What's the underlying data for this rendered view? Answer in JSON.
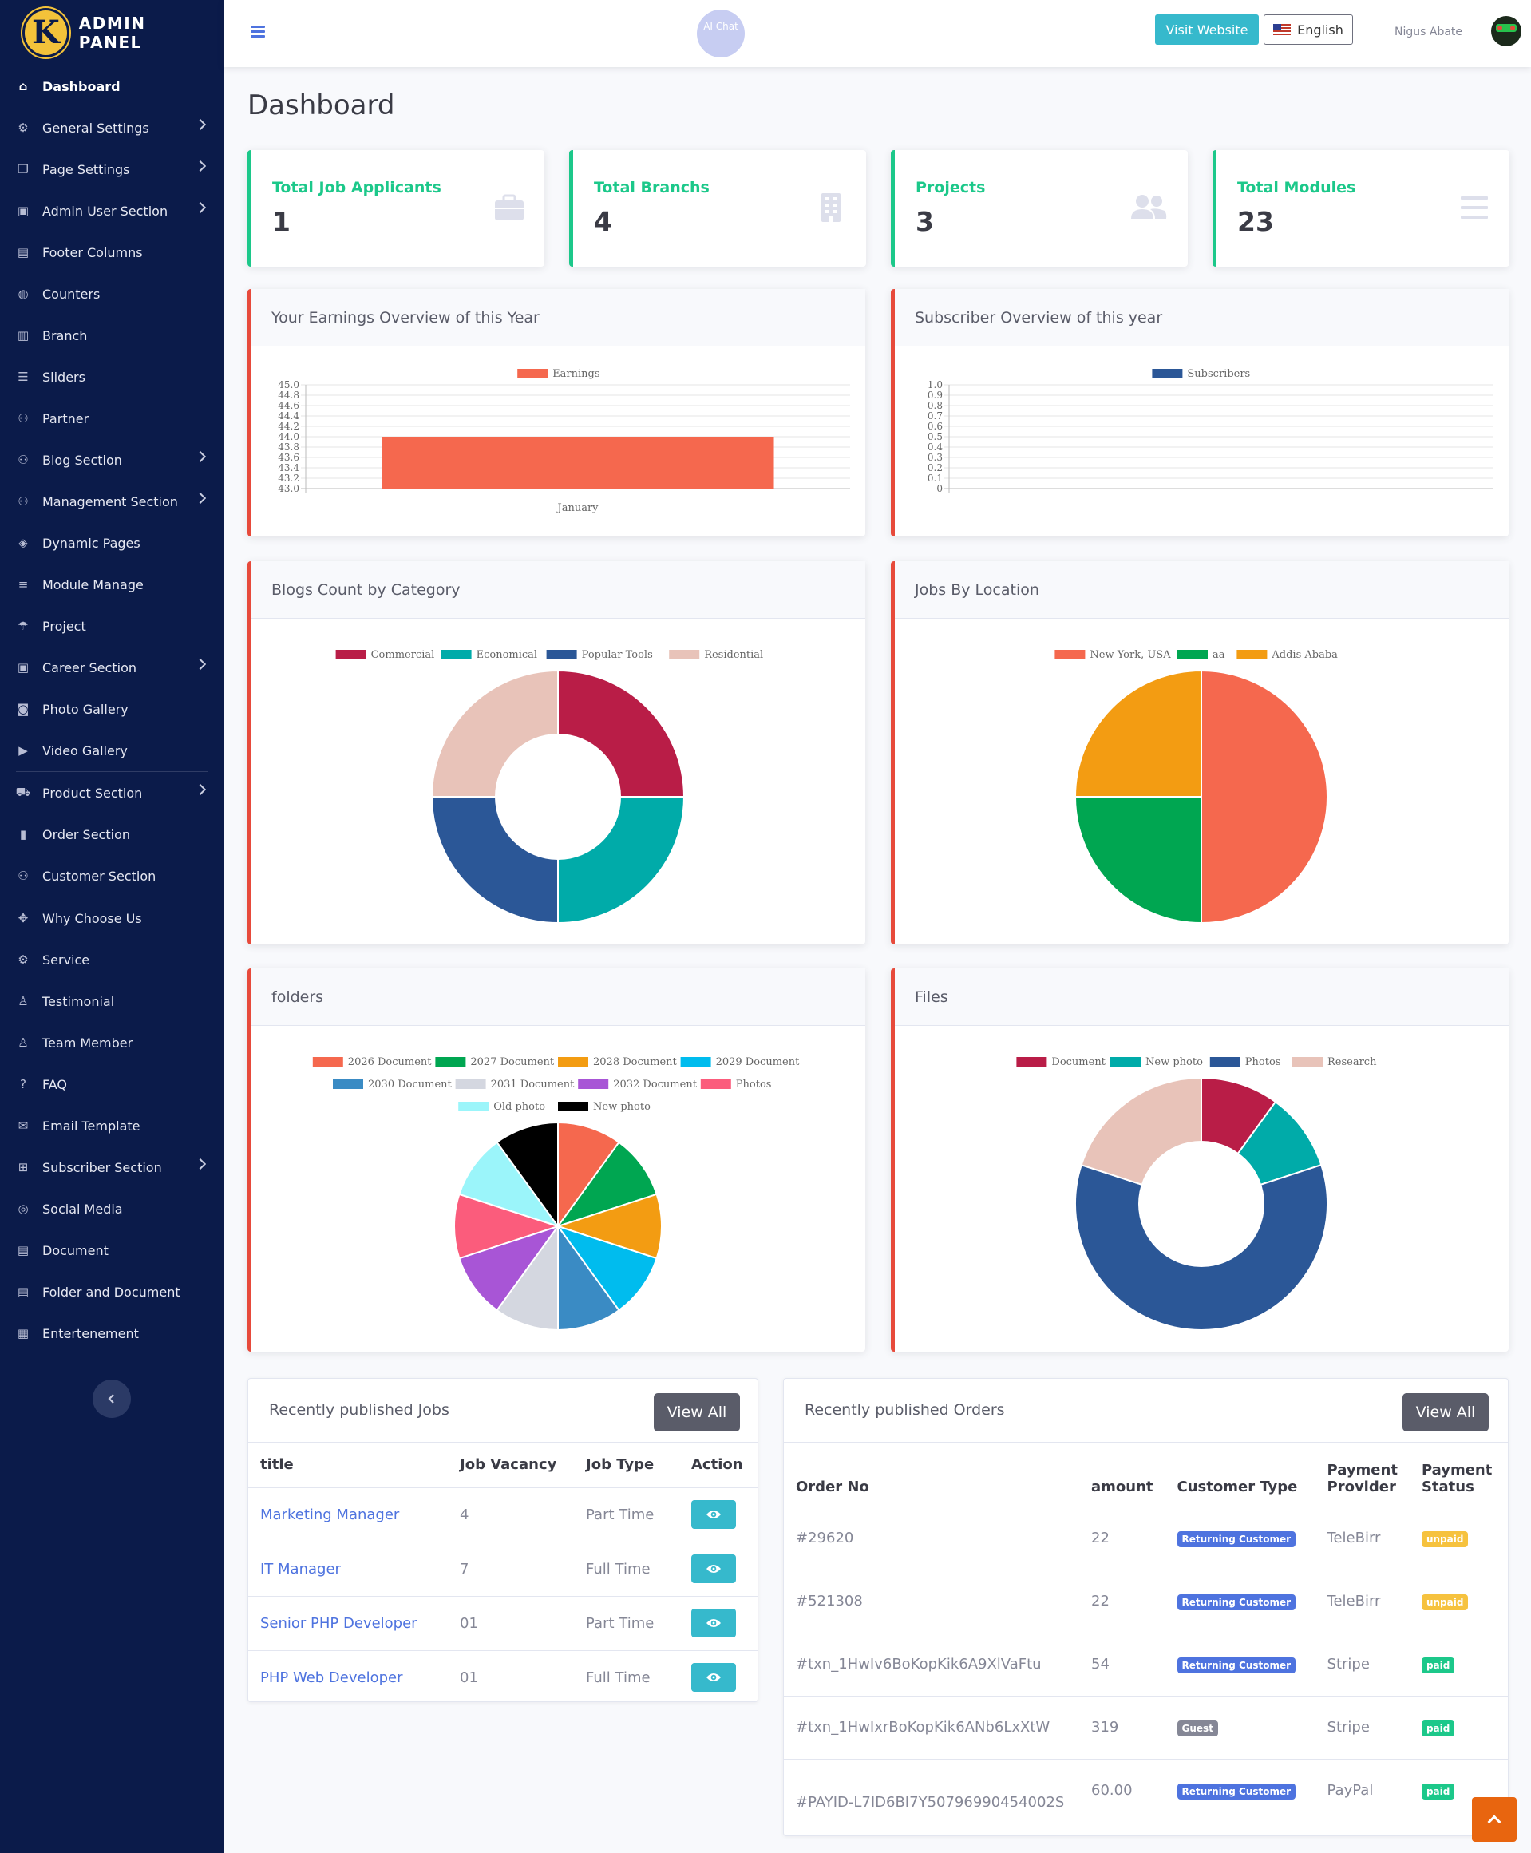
{
  "brand": {
    "logo_letter": "K",
    "title": "ADMIN PANEL"
  },
  "sidebar": {
    "items": [
      {
        "label": "Dashboard",
        "icon": "home-icon",
        "active": true,
        "chevron": false
      },
      {
        "label": "General Settings",
        "icon": "gear-icon",
        "chevron": true
      },
      {
        "label": "Page Settings",
        "icon": "copy-icon",
        "chevron": true
      },
      {
        "label": "Admin User Section",
        "icon": "lock-icon",
        "chevron": true
      },
      {
        "label": "Footer Columns",
        "icon": "list-alt-icon",
        "chevron": false
      },
      {
        "label": "Counters",
        "icon": "globe-icon",
        "chevron": false
      },
      {
        "label": "Branch",
        "icon": "building-icon",
        "chevron": false
      },
      {
        "label": "Sliders",
        "icon": "sliders-icon",
        "chevron": false
      },
      {
        "label": "Partner",
        "icon": "users-icon",
        "chevron": false
      },
      {
        "label": "Blog Section",
        "icon": "blog-icon",
        "chevron": true
      },
      {
        "label": "Management Section",
        "icon": "management-icon",
        "chevron": true
      },
      {
        "label": "Dynamic Pages",
        "icon": "cube-icon",
        "chevron": false
      },
      {
        "label": "Module Manage",
        "icon": "bars-icon",
        "chevron": false
      },
      {
        "label": "Project",
        "icon": "umbrella-icon",
        "chevron": false
      },
      {
        "label": "Career Section",
        "icon": "lock-icon",
        "chevron": true
      },
      {
        "label": "Photo Gallery",
        "icon": "camera-icon",
        "chevron": false
      },
      {
        "label": "Video Gallery",
        "icon": "video-icon",
        "chevron": false
      },
      {
        "label": "Product Section",
        "icon": "cart-icon",
        "chevron": true,
        "sep_before": true
      },
      {
        "label": "Order Section",
        "icon": "bookmark-icon",
        "chevron": false
      },
      {
        "label": "Customer Section",
        "icon": "users-icon",
        "chevron": false
      },
      {
        "label": "Why Choose Us",
        "icon": "arrows-icon",
        "chevron": false,
        "sep_before": true
      },
      {
        "label": "Service",
        "icon": "cog-icon",
        "chevron": false
      },
      {
        "label": "Testimonial",
        "icon": "user-icon",
        "chevron": false
      },
      {
        "label": "Team Member",
        "icon": "user-plus-icon",
        "chevron": false
      },
      {
        "label": "FAQ",
        "icon": "question-icon",
        "chevron": false
      },
      {
        "label": "Email Template",
        "icon": "envelope-icon",
        "chevron": false
      },
      {
        "label": "Subscriber Section",
        "icon": "plus-square-icon",
        "chevron": true
      },
      {
        "label": "Social Media",
        "icon": "dribbble-icon",
        "chevron": false
      },
      {
        "label": "Document",
        "icon": "file-icon",
        "chevron": false
      },
      {
        "label": "Folder and Document",
        "icon": "file-icon",
        "chevron": false
      },
      {
        "label": "Entertenement",
        "icon": "film-icon",
        "chevron": false
      }
    ]
  },
  "topbar": {
    "ai_chat": "AI Chat",
    "visit_website": "Visit Website",
    "language": "English",
    "user_name": "Nigus Abate"
  },
  "page_title": "Dashboard",
  "stats": [
    {
      "label": "Total Job Applicants",
      "value": "1",
      "icon": "briefcase-icon"
    },
    {
      "label": "Total Branchs",
      "value": "4",
      "icon": "building-icon"
    },
    {
      "label": "Projects",
      "value": "3",
      "icon": "users-icon"
    },
    {
      "label": "Total Modules",
      "value": "23",
      "icon": "bars-icon"
    }
  ],
  "cards": {
    "earnings": "Your Earnings Overview of this Year",
    "subscribers": "Subscriber Overview of this year",
    "blogs": "Blogs Count by Category",
    "jobs_location": "Jobs By Location",
    "folders": "folders",
    "files": "Files"
  },
  "chart_data": [
    {
      "id": "earnings",
      "type": "bar",
      "categories": [
        "January"
      ],
      "series": [
        {
          "name": "Earnings",
          "values": [
            44.0
          ],
          "color": "#f5684e"
        }
      ],
      "yticks": [
        "45.0",
        "44.8",
        "44.6",
        "44.4",
        "44.2",
        "44.0",
        "43.8",
        "43.6",
        "43.4",
        "43.2",
        "43.0"
      ],
      "ylim": [
        43.0,
        45.0
      ]
    },
    {
      "id": "subscribers",
      "type": "bar",
      "categories": [],
      "series": [
        {
          "name": "Subscribers",
          "values": [],
          "color": "#2b5797"
        }
      ],
      "yticks": [
        "1.0",
        "0.9",
        "0.8",
        "0.7",
        "0.6",
        "0.5",
        "0.4",
        "0.3",
        "0.2",
        "0.1",
        "0"
      ],
      "ylim": [
        0,
        1.0
      ]
    },
    {
      "id": "blogs",
      "type": "pie",
      "donut": true,
      "labels": [
        "Commercial",
        "Economical",
        "Popular Tools",
        "Residential"
      ],
      "values": [
        1,
        1,
        1,
        1
      ],
      "colors": [
        "#b91d47",
        "#00aba9",
        "#2b5797",
        "#e8c3b9"
      ]
    },
    {
      "id": "jobs_location",
      "type": "pie",
      "donut": false,
      "labels": [
        "New York, USA",
        "aa",
        "Addis Ababa"
      ],
      "values": [
        2,
        1,
        1
      ],
      "colors": [
        "#f5684e",
        "#00a651",
        "#f39c12"
      ]
    },
    {
      "id": "folders",
      "type": "pie",
      "donut": false,
      "labels": [
        "2026 Document",
        "2027 Document",
        "2028 Document",
        "2029 Document",
        "2030 Document",
        "2031 Document",
        "2032 Document",
        "Photos",
        "Old photo",
        "New photo"
      ],
      "values": [
        1,
        1,
        1,
        1,
        1,
        1,
        1,
        1,
        1,
        1
      ],
      "colors": [
        "#f5684e",
        "#00a651",
        "#f39c12",
        "#00bcee",
        "#3a8bc4",
        "#d4d7e0",
        "#a855d6",
        "#fb5c7c",
        "#9bf5fa",
        "#000000"
      ]
    },
    {
      "id": "files",
      "type": "pie",
      "donut": true,
      "labels": [
        "Document",
        "New photo",
        "Photos",
        "Research"
      ],
      "values": [
        1,
        1,
        6,
        2
      ],
      "colors": [
        "#b91d47",
        "#00aba9",
        "#2b5797",
        "#e8c3b9"
      ]
    }
  ],
  "jobs": {
    "title": "Recently published Jobs",
    "view_all": "View All",
    "headers": [
      "title",
      "Job Vacancy",
      "Job Type",
      "Action"
    ],
    "rows": [
      {
        "title": "Marketing Manager",
        "vacancy": "4",
        "type": "Part Time"
      },
      {
        "title": "IT Manager",
        "vacancy": "7",
        "type": "Full Time"
      },
      {
        "title": "Senior PHP Developer",
        "vacancy": "01",
        "type": "Part Time"
      },
      {
        "title": "PHP Web Developer",
        "vacancy": "01",
        "type": "Full Time"
      }
    ]
  },
  "orders": {
    "title": "Recently published Orders",
    "view_all": "View All",
    "headers": [
      "Order No",
      "amount",
      "Customer Type",
      "Payment Provider",
      "Payment Status"
    ],
    "rows": [
      {
        "no": "#29620",
        "amount": "22",
        "customer": "Returning Customer",
        "provider": "TeleBirr",
        "status": "unpaid"
      },
      {
        "no": "#521308",
        "amount": "22",
        "customer": "Returning Customer",
        "provider": "TeleBirr",
        "status": "unpaid"
      },
      {
        "no": "#txn_1HwIv6BoKopKik6A9XlVaFtu",
        "amount": "54",
        "customer": "Returning Customer",
        "provider": "Stripe",
        "status": "paid"
      },
      {
        "no": "#txn_1HwIxrBoKopKik6ANb6LxXtW",
        "amount": "319",
        "customer": "Guest",
        "provider": "Stripe",
        "status": "paid"
      },
      {
        "no": "#PAYID-L7ID6BI7Y50796990454002S",
        "amount": "60.00",
        "customer": "Returning Customer",
        "provider": "PayPal",
        "status": "paid"
      }
    ]
  }
}
